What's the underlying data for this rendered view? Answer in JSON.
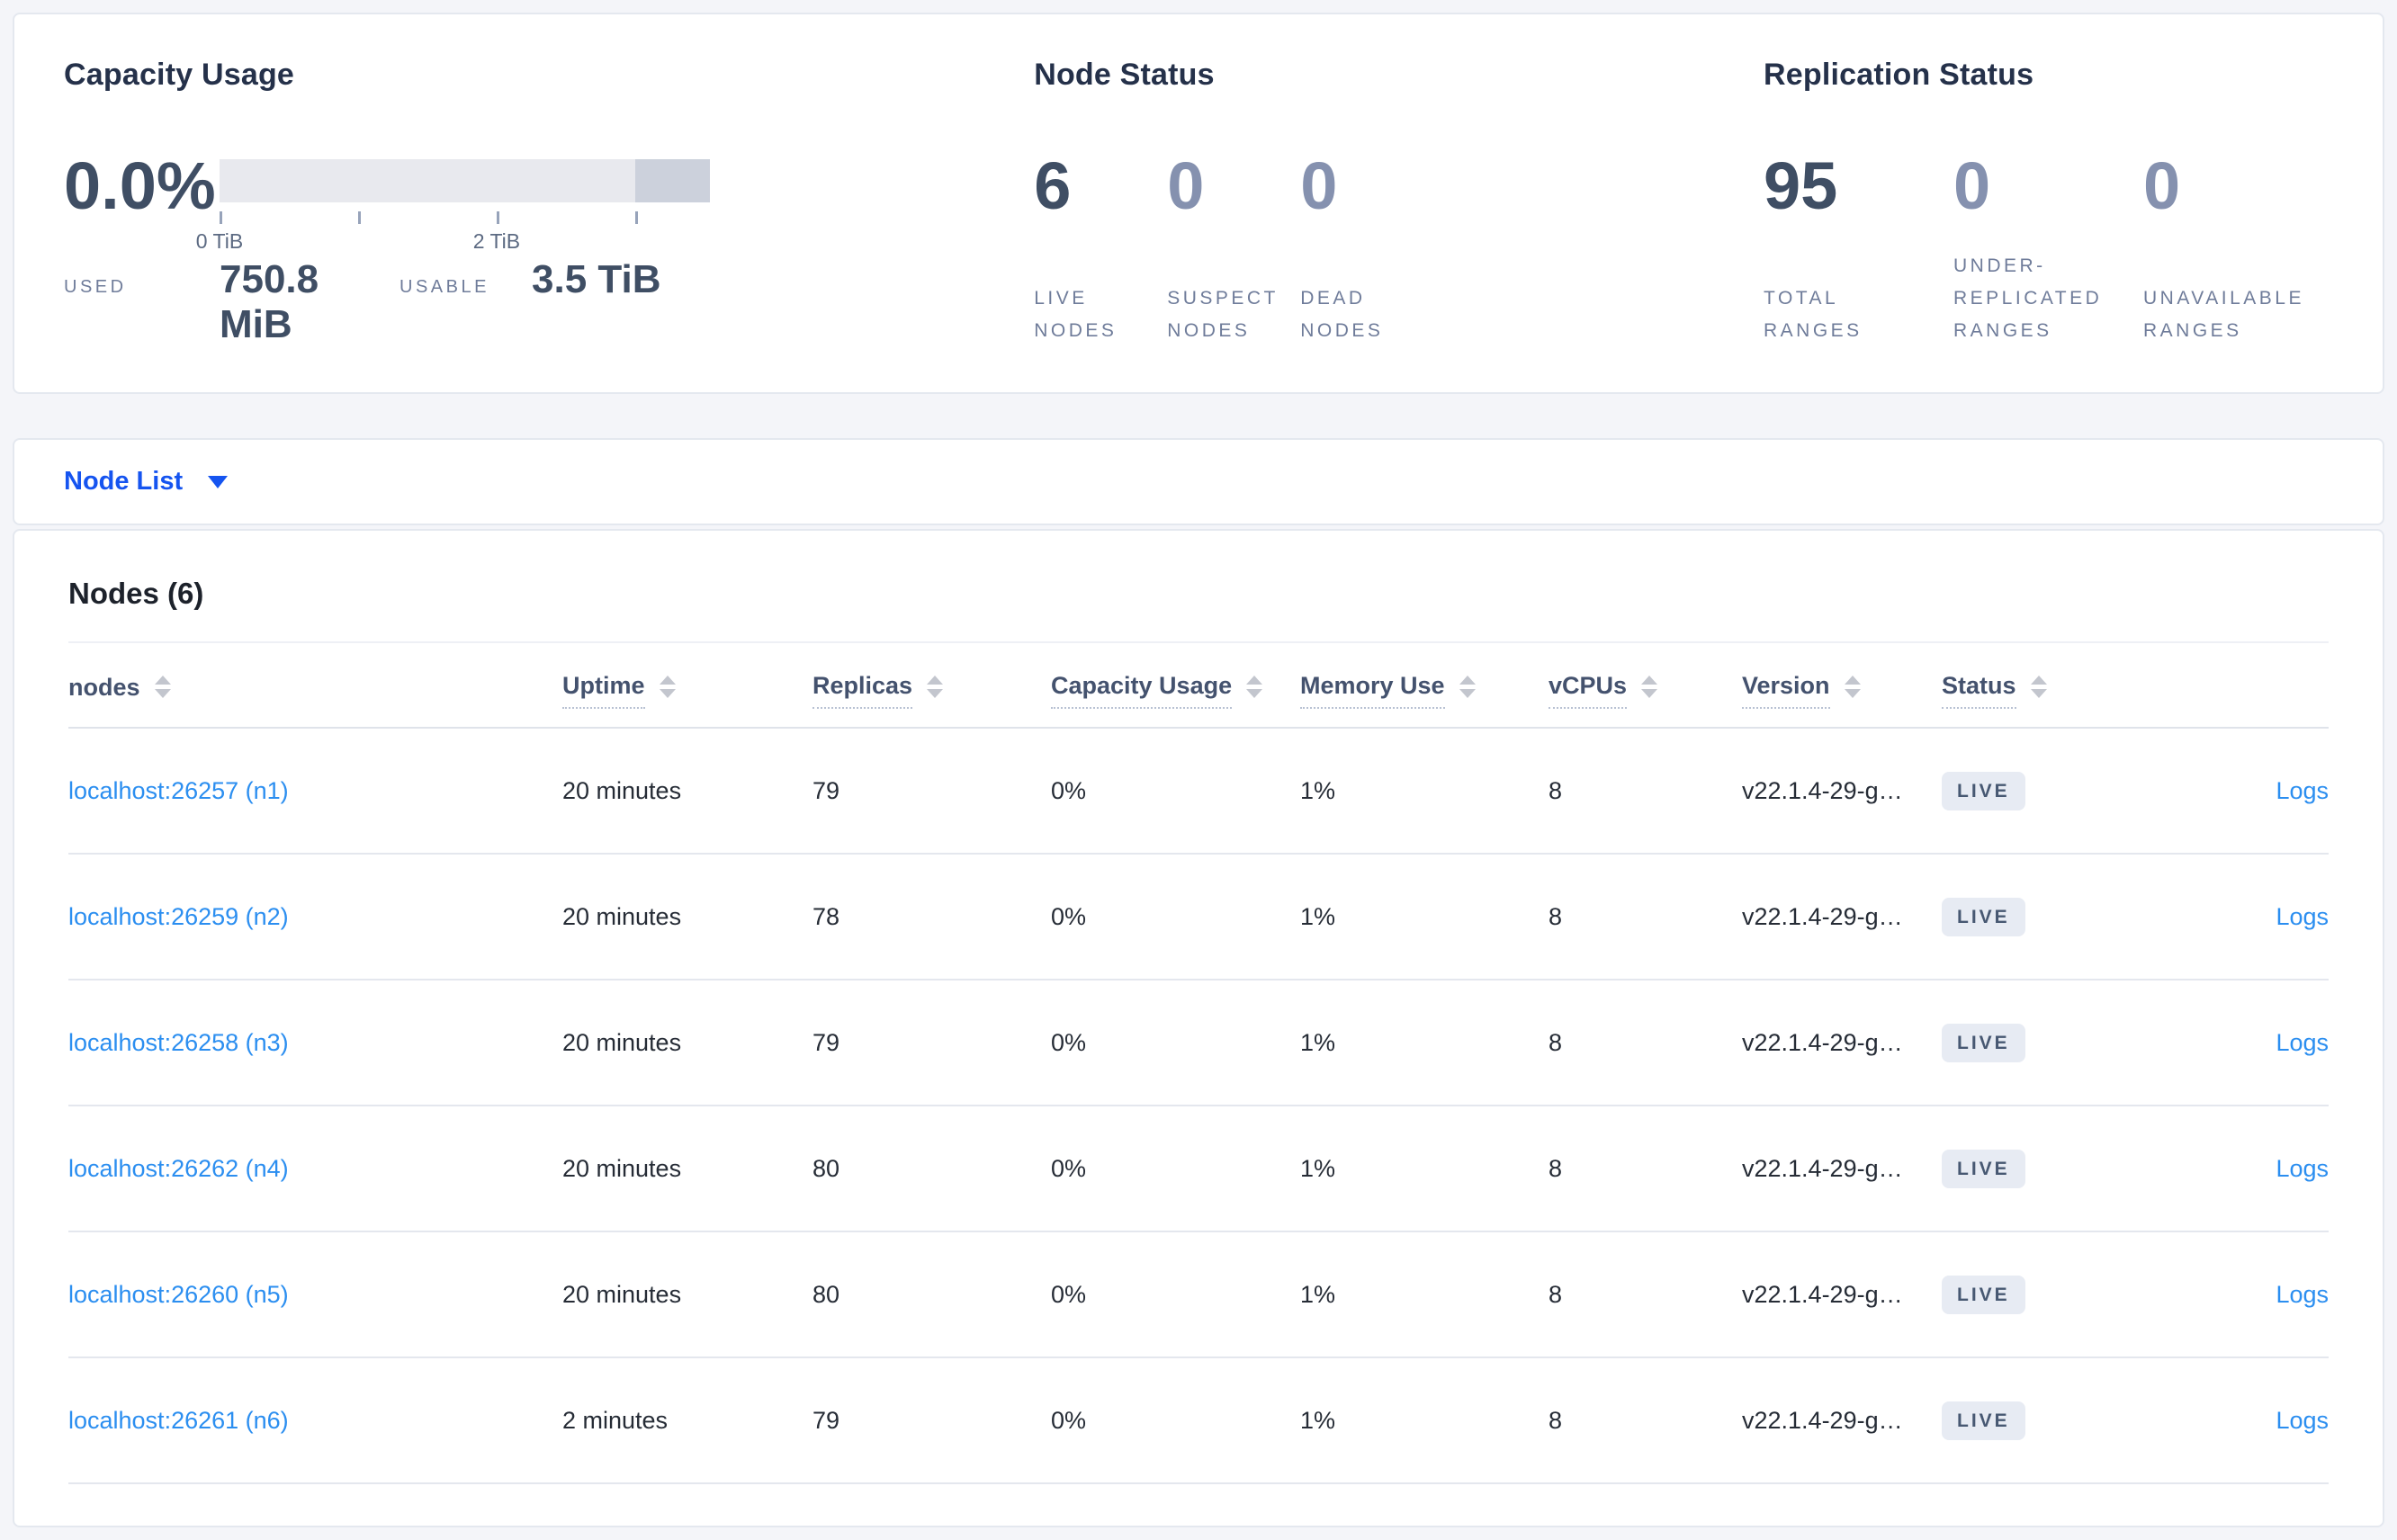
{
  "overview": {
    "capacity": {
      "title": "Capacity Usage",
      "percent": "0.0%",
      "used_label": "USED",
      "used_value": "750.8 MiB",
      "usable_label": "USABLE",
      "usable_value": "3.5 TiB",
      "bar": {
        "light_color": "#e8e9ee",
        "dark_color": "#ccd1dc",
        "dark_from_percent": 84.8,
        "tick_positions_percent": [
          0,
          28.3,
          56.5,
          84.8
        ],
        "tick_labels": [
          {
            "text": "0 TiB",
            "position_percent": 0
          },
          {
            "text": "2 TiB",
            "position_percent": 56.5
          }
        ]
      }
    },
    "node_status": {
      "title": "Node Status",
      "stats": [
        {
          "value": "6",
          "label": "LIVE NODES",
          "muted": false
        },
        {
          "value": "0",
          "label": "SUSPECT NODES",
          "muted": true
        },
        {
          "value": "0",
          "label": "DEAD NODES",
          "muted": true
        }
      ]
    },
    "replication_status": {
      "title": "Replication Status",
      "stats": [
        {
          "value": "95",
          "label": "TOTAL RANGES",
          "muted": false
        },
        {
          "value": "0",
          "label": "UNDER-REPLICATED RANGES",
          "muted": true
        },
        {
          "value": "0",
          "label": "UNAVAILABLE RANGES",
          "muted": true
        }
      ]
    }
  },
  "nav": {
    "view_selector_label": "Node List",
    "caret_icon": "caret-down"
  },
  "nodes_table": {
    "title": "Nodes (6)",
    "columns": [
      {
        "label": "nodes",
        "underlined": false
      },
      {
        "label": "Uptime",
        "underlined": true
      },
      {
        "label": "Replicas",
        "underlined": true
      },
      {
        "label": "Capacity Usage",
        "underlined": true
      },
      {
        "label": "Memory Use",
        "underlined": true
      },
      {
        "label": "vCPUs",
        "underlined": true
      },
      {
        "label": "Version",
        "underlined": true
      },
      {
        "label": "Status",
        "underlined": true
      }
    ],
    "rows": [
      {
        "address": "localhost:26257 (n1)",
        "uptime": "20 minutes",
        "replicas": "79",
        "capacity_usage": "0%",
        "memory_use": "1%",
        "vcpus": "8",
        "version": "v22.1.4-29-g…",
        "status": "LIVE",
        "logs": "Logs"
      },
      {
        "address": "localhost:26259 (n2)",
        "uptime": "20 minutes",
        "replicas": "78",
        "capacity_usage": "0%",
        "memory_use": "1%",
        "vcpus": "8",
        "version": "v22.1.4-29-g…",
        "status": "LIVE",
        "logs": "Logs"
      },
      {
        "address": "localhost:26258 (n3)",
        "uptime": "20 minutes",
        "replicas": "79",
        "capacity_usage": "0%",
        "memory_use": "1%",
        "vcpus": "8",
        "version": "v22.1.4-29-g…",
        "status": "LIVE",
        "logs": "Logs"
      },
      {
        "address": "localhost:26262 (n4)",
        "uptime": "20 minutes",
        "replicas": "80",
        "capacity_usage": "0%",
        "memory_use": "1%",
        "vcpus": "8",
        "version": "v22.1.4-29-g…",
        "status": "LIVE",
        "logs": "Logs"
      },
      {
        "address": "localhost:26260 (n5)",
        "uptime": "20 minutes",
        "replicas": "80",
        "capacity_usage": "0%",
        "memory_use": "1%",
        "vcpus": "8",
        "version": "v22.1.4-29-g…",
        "status": "LIVE",
        "logs": "Logs"
      },
      {
        "address": "localhost:26261 (n6)",
        "uptime": "2 minutes",
        "replicas": "79",
        "capacity_usage": "0%",
        "memory_use": "1%",
        "vcpus": "8",
        "version": "v22.1.4-29-g…",
        "status": "LIVE",
        "logs": "Logs"
      }
    ]
  },
  "colors": {
    "page_background": "#f4f5f9",
    "card_background": "#ffffff",
    "card_border": "#e4e8ef",
    "primary_text": "#262c36",
    "stat_dark": "#3f4e64",
    "stat_muted": "#8591af",
    "stat_label": "#6f7c9a",
    "link_blue": "#2b8ef0",
    "selector_blue": "#1554f0",
    "badge_background": "#e7ebf3",
    "badge_text": "#475872"
  }
}
